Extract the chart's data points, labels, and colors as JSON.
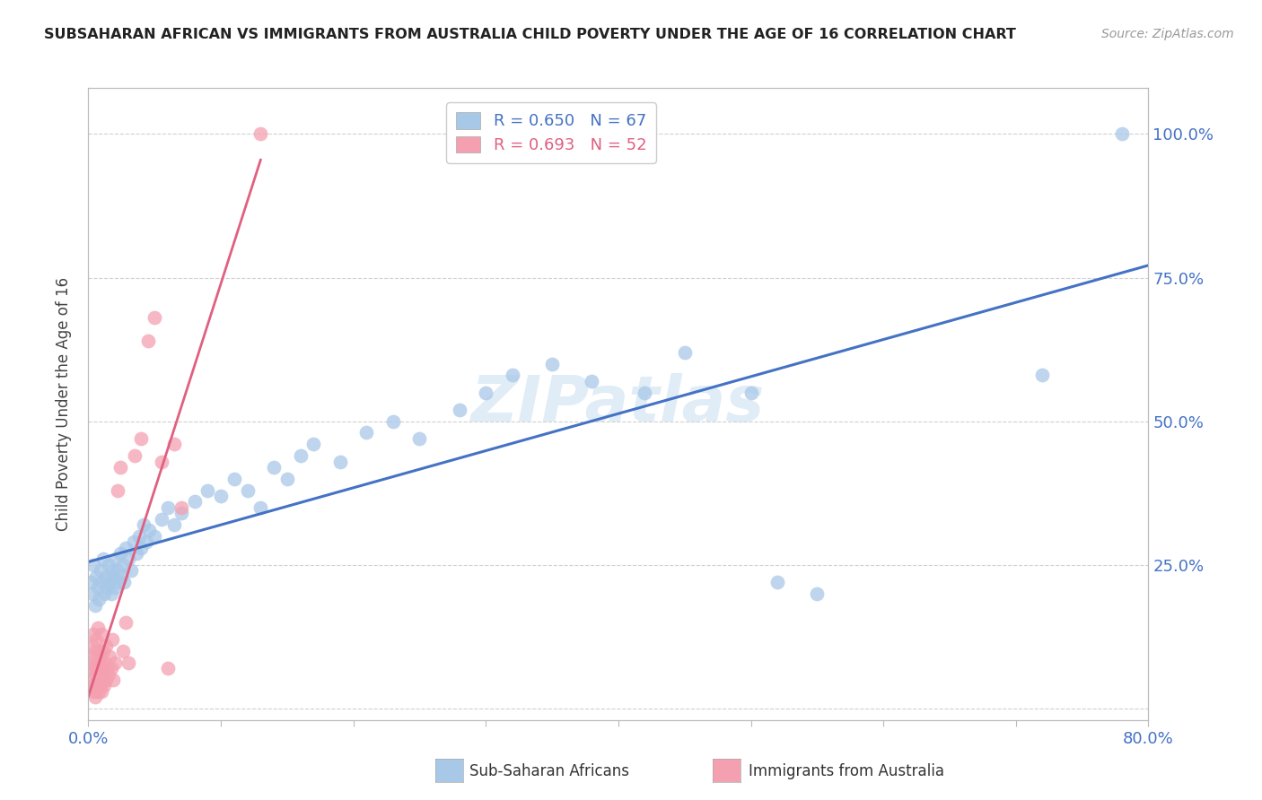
{
  "title": "SUBSAHARAN AFRICAN VS IMMIGRANTS FROM AUSTRALIA CHILD POVERTY UNDER THE AGE OF 16 CORRELATION CHART",
  "source": "Source: ZipAtlas.com",
  "ylabel": "Child Poverty Under the Age of 16",
  "xlim": [
    0.0,
    0.8
  ],
  "ylim": [
    -0.02,
    1.08
  ],
  "blue_R": 0.65,
  "blue_N": 67,
  "pink_R": 0.693,
  "pink_N": 52,
  "blue_color": "#a8c8e8",
  "pink_color": "#f4a0b0",
  "blue_line_color": "#4472c4",
  "pink_line_color": "#e06080",
  "blue_scatter_x": [
    0.002,
    0.003,
    0.004,
    0.005,
    0.006,
    0.007,
    0.008,
    0.009,
    0.01,
    0.011,
    0.012,
    0.013,
    0.014,
    0.015,
    0.016,
    0.017,
    0.018,
    0.019,
    0.02,
    0.021,
    0.022,
    0.023,
    0.024,
    0.025,
    0.026,
    0.027,
    0.028,
    0.03,
    0.032,
    0.034,
    0.036,
    0.038,
    0.04,
    0.042,
    0.044,
    0.046,
    0.05,
    0.055,
    0.06,
    0.065,
    0.07,
    0.08,
    0.09,
    0.1,
    0.11,
    0.12,
    0.13,
    0.14,
    0.15,
    0.16,
    0.17,
    0.19,
    0.21,
    0.23,
    0.25,
    0.28,
    0.3,
    0.32,
    0.35,
    0.38,
    0.42,
    0.45,
    0.5,
    0.52,
    0.55,
    0.72,
    0.78
  ],
  "blue_scatter_y": [
    0.22,
    0.2,
    0.25,
    0.18,
    0.23,
    0.21,
    0.19,
    0.24,
    0.22,
    0.26,
    0.2,
    0.23,
    0.21,
    0.25,
    0.22,
    0.2,
    0.24,
    0.23,
    0.21,
    0.26,
    0.24,
    0.22,
    0.27,
    0.23,
    0.25,
    0.22,
    0.28,
    0.26,
    0.24,
    0.29,
    0.27,
    0.3,
    0.28,
    0.32,
    0.29,
    0.31,
    0.3,
    0.33,
    0.35,
    0.32,
    0.34,
    0.36,
    0.38,
    0.37,
    0.4,
    0.38,
    0.35,
    0.42,
    0.4,
    0.44,
    0.46,
    0.43,
    0.48,
    0.5,
    0.47,
    0.52,
    0.55,
    0.58,
    0.6,
    0.57,
    0.55,
    0.62,
    0.55,
    0.22,
    0.2,
    0.58,
    1.0
  ],
  "pink_scatter_x": [
    0.002,
    0.002,
    0.003,
    0.003,
    0.003,
    0.004,
    0.004,
    0.004,
    0.005,
    0.005,
    0.005,
    0.006,
    0.006,
    0.006,
    0.007,
    0.007,
    0.007,
    0.008,
    0.008,
    0.008,
    0.009,
    0.009,
    0.01,
    0.01,
    0.01,
    0.011,
    0.011,
    0.012,
    0.012,
    0.013,
    0.013,
    0.014,
    0.015,
    0.016,
    0.017,
    0.018,
    0.019,
    0.02,
    0.022,
    0.024,
    0.026,
    0.028,
    0.03,
    0.035,
    0.04,
    0.045,
    0.05,
    0.055,
    0.06,
    0.065,
    0.07,
    0.13
  ],
  "pink_scatter_y": [
    0.05,
    0.08,
    0.03,
    0.07,
    0.11,
    0.04,
    0.09,
    0.13,
    0.02,
    0.06,
    0.1,
    0.03,
    0.07,
    0.12,
    0.04,
    0.08,
    0.14,
    0.03,
    0.06,
    0.1,
    0.04,
    0.09,
    0.03,
    0.07,
    0.13,
    0.05,
    0.1,
    0.04,
    0.08,
    0.05,
    0.11,
    0.07,
    0.06,
    0.09,
    0.07,
    0.12,
    0.05,
    0.08,
    0.38,
    0.42,
    0.1,
    0.15,
    0.08,
    0.44,
    0.47,
    0.64,
    0.68,
    0.43,
    0.07,
    0.46,
    0.35,
    1.0
  ],
  "watermark": "ZIPatlas",
  "background_color": "#ffffff",
  "grid_color": "#d0d0d0"
}
